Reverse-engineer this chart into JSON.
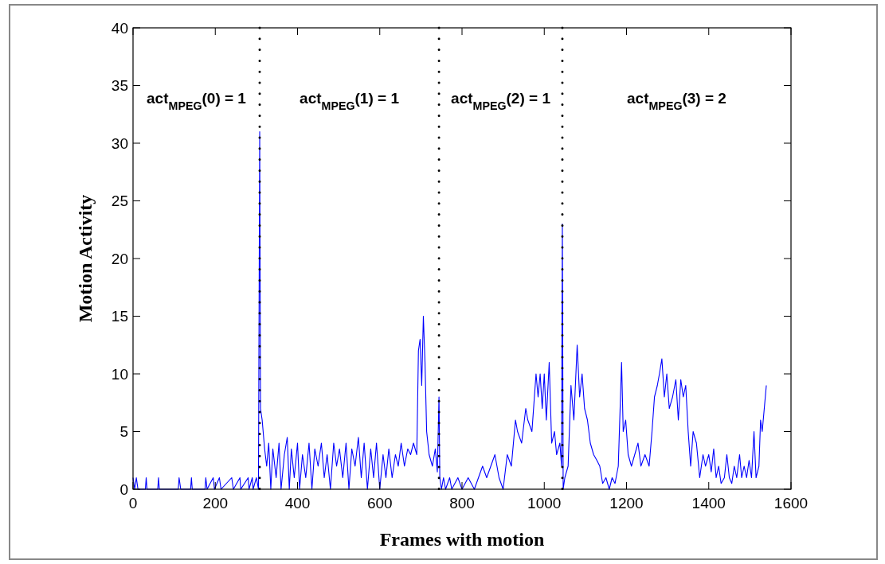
{
  "chart_data": {
    "type": "line",
    "xlabel": "Frames with motion",
    "ylabel": "Motion Activity",
    "xlim": [
      0,
      1600
    ],
    "ylim": [
      0,
      40
    ],
    "xticks": [
      0,
      200,
      400,
      600,
      800,
      1000,
      1200,
      1400,
      1600
    ],
    "yticks": [
      0,
      5,
      10,
      15,
      20,
      25,
      30,
      35,
      40
    ],
    "grid": false,
    "line_style": "solid",
    "marker": "none",
    "ref_lines": [
      {
        "axis": "x",
        "value": 308,
        "color": "#000000",
        "line_style": "dotted"
      },
      {
        "axis": "x",
        "value": 744,
        "color": "#000000",
        "line_style": "dotted"
      },
      {
        "axis": "x",
        "value": 1044,
        "color": "#000000",
        "line_style": "dotted"
      }
    ],
    "annotations": [
      "act$_{MPEG}$(0) = 1",
      "act$_{MPEG}$(1) = 1",
      "act$_{MPEG}$(2) = 1",
      "act$_{MPEG}$(3) = 2"
    ],
    "series": [
      {
        "color": "#0000ff",
        "x": [
          0,
          4,
          8,
          12,
          30,
          32,
          34,
          60,
          62,
          64,
          110,
          112,
          116,
          140,
          142,
          144,
          175,
          177,
          180,
          195,
          198,
          210,
          214,
          240,
          244,
          260,
          262,
          280,
          282,
          290,
          292,
          300,
          305,
          308,
          310,
          314,
          320,
          325,
          330,
          335,
          340,
          348,
          355,
          360,
          368,
          375,
          380,
          385,
          392,
          400,
          405,
          412,
          420,
          428,
          435,
          442,
          450,
          458,
          465,
          472,
          480,
          488,
          495,
          502,
          510,
          518,
          525,
          532,
          540,
          548,
          555,
          562,
          570,
          578,
          585,
          592,
          600,
          608,
          615,
          622,
          630,
          638,
          645,
          652,
          660,
          668,
          675,
          682,
          690,
          694,
          698,
          702,
          706,
          710,
          714,
          720,
          728,
          735,
          740,
          744,
          746,
          750,
          755,
          760,
          770,
          775,
          790,
          800,
          815,
          830,
          840,
          850,
          860,
          870,
          880,
          890,
          900,
          910,
          920,
          930,
          935,
          945,
          955,
          960,
          970,
          980,
          985,
          990,
          995,
          1000,
          1005,
          1012,
          1018,
          1025,
          1030,
          1038,
          1042,
          1044,
          1046,
          1050,
          1058,
          1065,
          1072,
          1080,
          1086,
          1092,
          1098,
          1105,
          1112,
          1120,
          1128,
          1135,
          1142,
          1150,
          1158,
          1165,
          1172,
          1180,
          1188,
          1192,
          1198,
          1204,
          1212,
          1220,
          1228,
          1235,
          1245,
          1255,
          1262,
          1268,
          1275,
          1280,
          1286,
          1292,
          1298,
          1304,
          1312,
          1320,
          1326,
          1332,
          1338,
          1344,
          1350,
          1356,
          1362,
          1370,
          1378,
          1386,
          1392,
          1400,
          1406,
          1412,
          1418,
          1424,
          1430,
          1438,
          1444,
          1450,
          1456,
          1462,
          1468,
          1475,
          1480,
          1486,
          1492,
          1498,
          1504,
          1510,
          1515,
          1522,
          1526,
          1530,
          1535,
          1540
        ],
        "values": [
          1,
          0,
          1,
          0,
          0,
          1,
          0,
          0,
          1,
          0,
          0,
          1,
          0,
          0,
          1,
          0,
          0,
          1,
          0,
          1,
          0,
          1,
          0,
          1,
          0,
          1,
          0,
          1,
          0,
          1,
          0,
          1,
          0,
          31,
          7,
          6,
          3.5,
          2,
          4,
          0,
          3.5,
          1,
          4,
          0,
          3,
          4.5,
          0,
          3.5,
          1,
          4,
          0,
          3,
          1,
          4,
          0,
          3.5,
          2,
          4,
          1,
          3,
          0,
          4,
          2,
          3.5,
          1,
          4,
          0,
          3.5,
          2,
          4.5,
          1,
          4,
          0,
          3.5,
          1,
          4,
          0,
          3,
          1,
          3.5,
          1,
          3,
          2,
          4,
          2,
          3.5,
          3,
          4,
          3,
          12,
          13,
          9,
          15,
          11,
          5,
          3,
          2,
          3.5,
          1.5,
          8,
          1,
          0,
          1,
          0,
          1,
          0,
          1,
          0,
          1,
          0,
          1,
          2,
          1,
          2,
          3,
          1,
          0,
          3,
          2,
          6,
          5,
          4,
          7,
          6,
          5,
          10,
          8,
          10,
          7,
          10,
          6,
          11,
          4,
          5,
          3,
          4,
          2,
          23,
          0,
          1,
          2,
          9,
          6,
          12.5,
          8,
          10,
          7,
          6,
          4,
          3,
          2.5,
          2,
          0.5,
          1,
          0,
          1,
          0.5,
          2,
          11,
          5,
          6,
          3,
          2,
          3,
          4,
          2,
          3,
          2,
          5,
          8,
          9,
          10,
          11.3,
          8,
          10,
          7,
          8,
          9.5,
          6,
          9.5,
          8,
          9,
          5,
          2,
          5,
          4,
          1,
          3,
          2,
          3,
          1.5,
          3.5,
          1,
          2,
          0.5,
          1,
          3,
          1,
          0.5,
          2,
          1,
          3,
          1,
          2,
          1,
          2.5,
          1,
          5,
          1,
          2,
          6,
          5,
          7,
          9
        ]
      }
    ]
  }
}
